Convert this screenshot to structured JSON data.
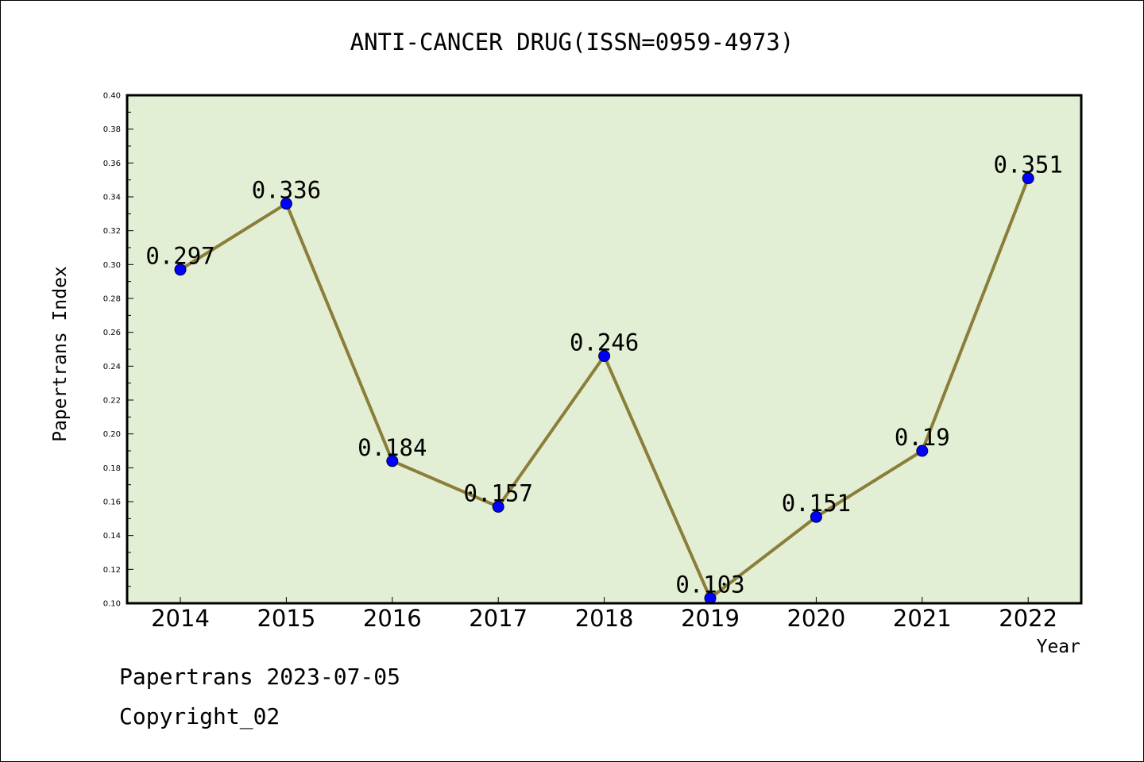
{
  "chart_data": {
    "type": "line",
    "title": "ANTI-CANCER DRUG(ISSN=0959-4973)",
    "xlabel": "Year",
    "ylabel": "Papertrans Index",
    "categories": [
      "2014",
      "2015",
      "2016",
      "2017",
      "2018",
      "2019",
      "2020",
      "2021",
      "2022"
    ],
    "values": [
      0.297,
      0.336,
      0.184,
      0.157,
      0.246,
      0.103,
      0.151,
      0.19,
      0.351
    ],
    "data_labels": [
      "0.297",
      "0.336",
      "0.184",
      "0.157",
      "0.246",
      "0.103",
      "0.151",
      "0.19",
      "0.351"
    ],
    "ylim": [
      0.1,
      0.4
    ],
    "yticks": [
      "0.10",
      "0.12",
      "0.14",
      "0.16",
      "0.18",
      "0.20",
      "0.22",
      "0.24",
      "0.26",
      "0.28",
      "0.30",
      "0.32",
      "0.34",
      "0.36",
      "0.38",
      "0.40"
    ],
    "grid": false,
    "colors": {
      "plot_background": "#e2efd4",
      "line": "#8b7d3a",
      "marker": "#0000ff"
    }
  },
  "footer": {
    "line1": "Papertrans 2023-07-05",
    "line2": "Copyright_02"
  }
}
